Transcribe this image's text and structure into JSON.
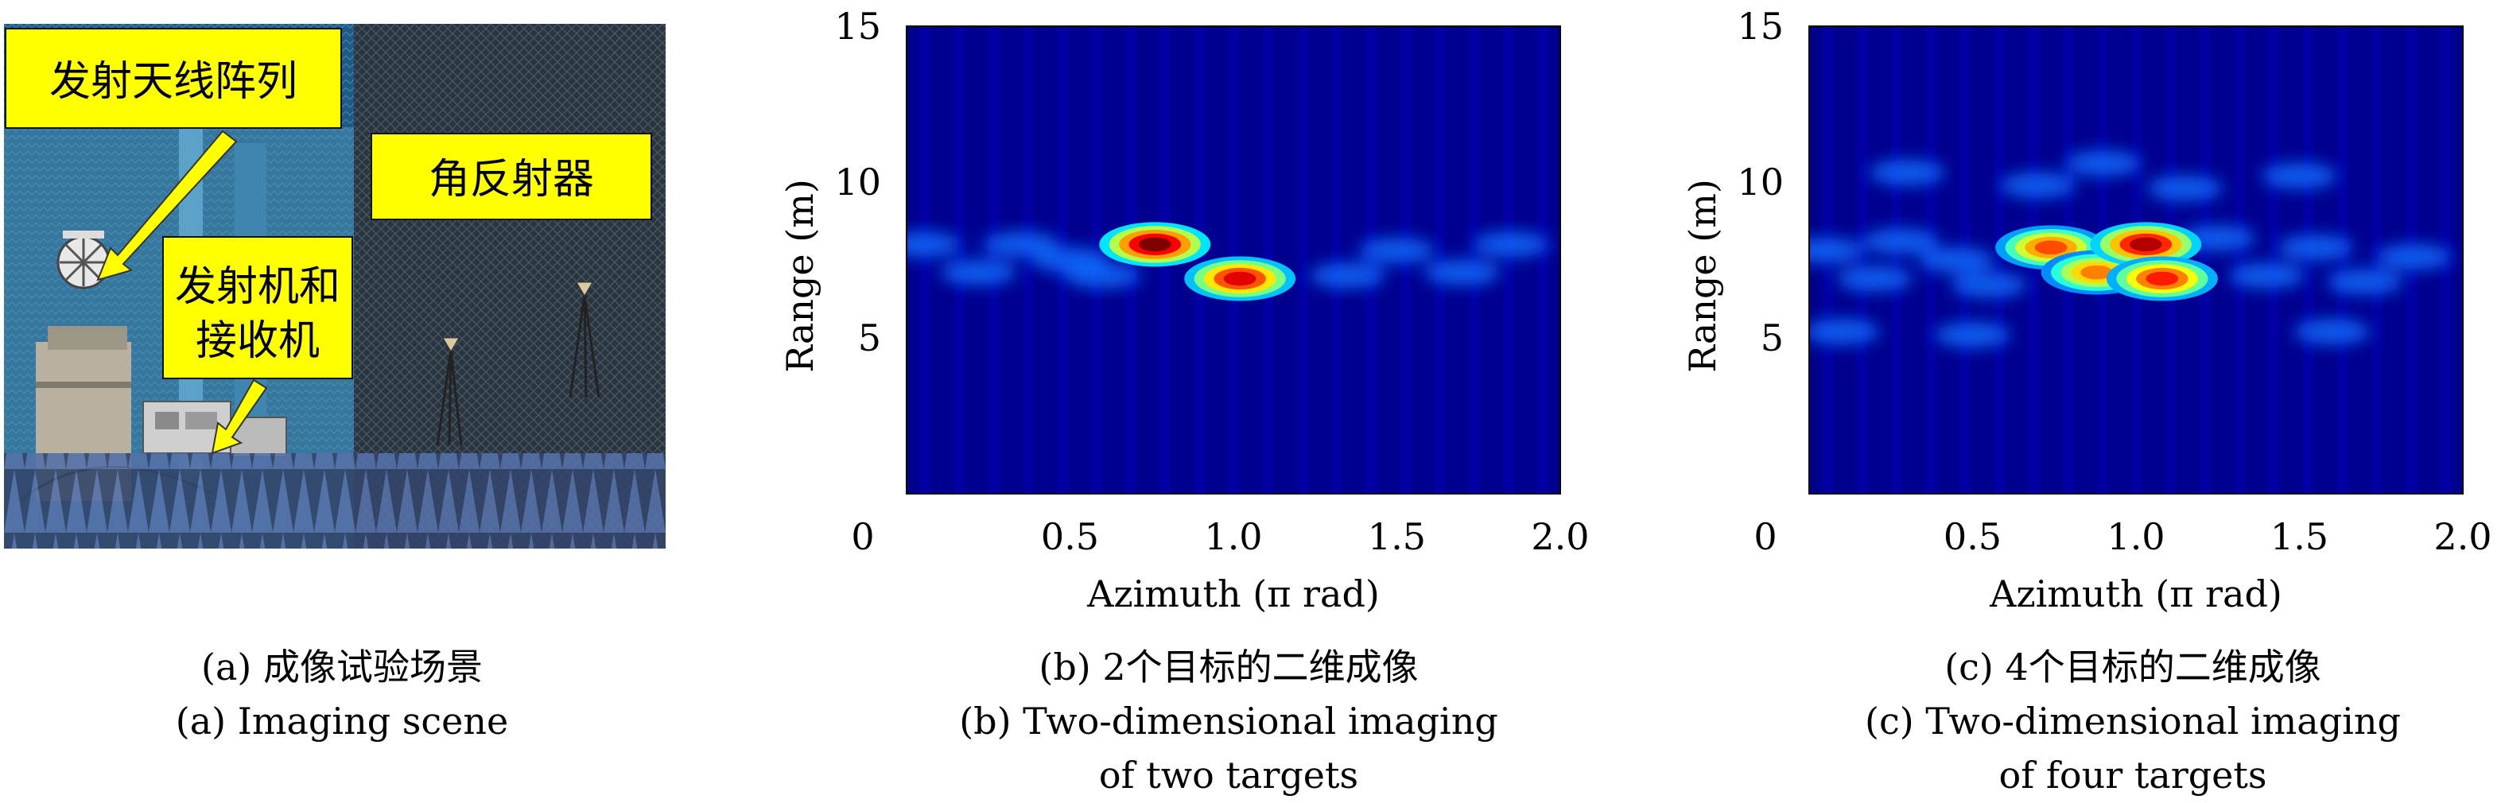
{
  "panel_a": {
    "labels": {
      "tx_array": "发射天线阵列",
      "corner_reflector": "角反射器",
      "txrx_line1": "发射机和",
      "txrx_line2": "接收机"
    },
    "caption_cn": "(a) 成像试验场景",
    "caption_en": "(a) Imaging scene"
  },
  "panel_b": {
    "caption_cn": "(b) 2个目标的二维成像",
    "caption_en_line1": "(b) Two-dimensional imaging",
    "caption_en_line2": "of two targets"
  },
  "panel_c": {
    "caption_cn": "(c) 4个目标的二维成像",
    "caption_en_line1": "(c) Two-dimensional imaging",
    "caption_en_line2": "of four targets"
  },
  "chart_data": [
    {
      "type": "heatmap",
      "xlabel": "Azimuth (π rad)",
      "ylabel": "Range (m)",
      "xlim": [
        0,
        2.0
      ],
      "ylim": [
        0,
        15
      ],
      "xticks": [
        "0",
        "0.5",
        "1.0",
        "1.5",
        "2.0"
      ],
      "yticks": [
        "5",
        "10",
        "15"
      ],
      "colormap": "jet",
      "peaks": [
        {
          "azimuth": 0.76,
          "range": 8.0,
          "intensity": 1.0
        },
        {
          "azimuth": 1.02,
          "range": 6.9,
          "intensity": 0.9
        }
      ]
    },
    {
      "type": "heatmap",
      "xlabel": "Azimuth (π rad)",
      "ylabel": "Range (m)",
      "xlim": [
        0,
        2.0
      ],
      "ylim": [
        0,
        15
      ],
      "xticks": [
        "0",
        "0.5",
        "1.0",
        "1.5",
        "2.0"
      ],
      "yticks": [
        "5",
        "10",
        "15"
      ],
      "colormap": "jet",
      "peaks": [
        {
          "azimuth": 0.74,
          "range": 7.9,
          "intensity": 0.8
        },
        {
          "azimuth": 0.88,
          "range": 7.1,
          "intensity": 0.75
        },
        {
          "azimuth": 1.03,
          "range": 8.0,
          "intensity": 0.95
        },
        {
          "azimuth": 1.08,
          "range": 6.9,
          "intensity": 0.85
        }
      ]
    }
  ],
  "colors": {
    "heatmap_background": "#00008f",
    "label_box": "#ffff00",
    "arrow": "#ffff00"
  }
}
